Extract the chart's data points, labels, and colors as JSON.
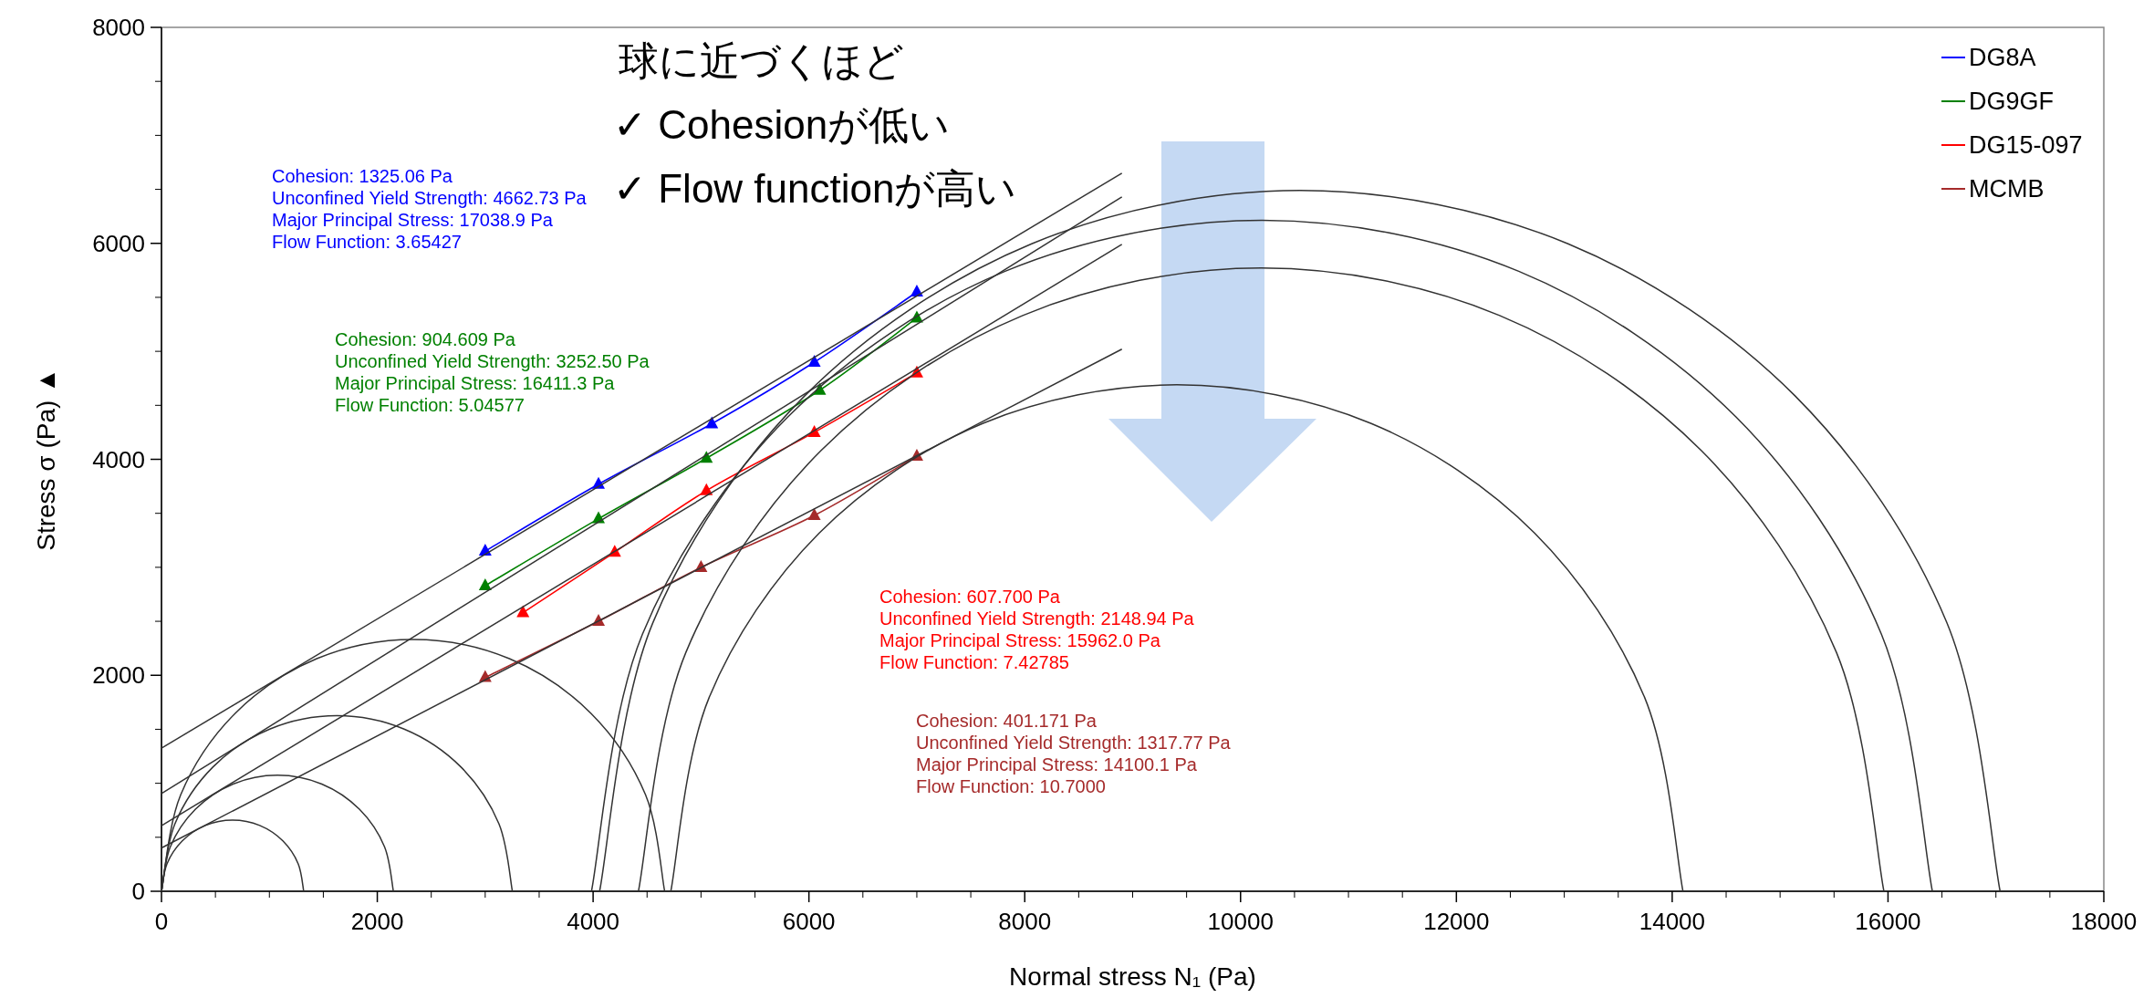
{
  "chart_data": {
    "type": "line",
    "xlabel": "Normal stress N₁ (Pa)",
    "ylabel": "Stress σ (Pa) ▲",
    "xlim": [
      0,
      18000
    ],
    "xticks": [
      0,
      2000,
      4000,
      6000,
      8000,
      10000,
      12000,
      14000,
      16000,
      18000
    ],
    "ylim": [
      0,
      8000
    ],
    "yticks": [
      0,
      2000,
      4000,
      6000,
      8000
    ],
    "grid": false,
    "legend": "top right",
    "series": [
      {
        "name": "DG8A",
        "color": "#0000ff",
        "marker": "triangle",
        "x": [
          3000,
          4050,
          5100,
          6050,
          7000
        ],
        "values": [
          3150,
          3770,
          4330,
          4900,
          5550
        ]
      },
      {
        "name": "DG9GF",
        "color": "#008000",
        "marker": "triangle",
        "x": [
          3000,
          4050,
          5050,
          6100,
          7000
        ],
        "values": [
          2830,
          3450,
          4010,
          4640,
          5310
        ]
      },
      {
        "name": "DG15-097",
        "color": "#ff0000",
        "marker": "triangle",
        "x": [
          3350,
          4200,
          5050,
          6050,
          7000
        ],
        "values": [
          2580,
          3140,
          3710,
          4250,
          4800
        ]
      },
      {
        "name": "MCMB",
        "color": "#a52a2a",
        "marker": "triangle",
        "x": [
          3000,
          4050,
          5000,
          6050,
          7000
        ],
        "values": [
          1980,
          2500,
          3000,
          3480,
          4030
        ]
      },
      {
        "color": "#333333",
        "marker": "none",
        "x": [
          0,
          8900
        ],
        "values": [
          1325,
          6650
        ]
      },
      {
        "color": "#333333",
        "marker": "none",
        "x": [
          0,
          8900
        ],
        "values": [
          905,
          6430
        ]
      },
      {
        "color": "#333333",
        "marker": "none",
        "x": [
          0,
          8900
        ],
        "values": [
          608,
          5990
        ]
      },
      {
        "color": "#333333",
        "marker": "none",
        "x": [
          0,
          8900
        ],
        "values": [
          401,
          5020
        ]
      },
      {
        "color": "#333333",
        "marker": "none",
        "x": [
          1318,
          1268,
          1125,
          911,
          659,
          407,
          193,
          50,
          0
        ],
        "values": [
          0,
          252,
          466,
          609,
          659,
          609,
          466,
          252,
          0
        ]
      },
      {
        "color": "#333333",
        "marker": "none",
        "x": [
          2149,
          2067,
          1834,
          1486,
          1075,
          663,
          315,
          82,
          0
        ],
        "values": [
          0,
          412,
          760,
          993,
          1075,
          993,
          760,
          412,
          0
        ]
      },
      {
        "color": "#333333",
        "marker": "none",
        "x": [
          3252,
          3128,
          2776,
          2249,
          1626,
          1003,
          476,
          124,
          0
        ],
        "values": [
          0,
          623,
          1150,
          1502,
          1626,
          1502,
          1150,
          623,
          0
        ]
      },
      {
        "color": "#333333",
        "marker": "none",
        "x": [
          4663,
          4486,
          3980,
          3224,
          2332,
          1439,
          683,
          178,
          0
        ],
        "values": [
          0,
          893,
          1648,
          2154,
          2332,
          2154,
          1648,
          893,
          0
        ]
      },
      {
        "color": "#333333",
        "marker": "none",
        "x": [
          17039,
          16546,
          15138,
          13035,
          10550,
          8064,
          5961,
          4553,
          4060
        ],
        "values": [
          0,
          2485,
          4588,
          5996,
          6490,
          5996,
          4588,
          2485,
          0
        ]
      },
      {
        "color": "#333333",
        "marker": "none",
        "x": [
          16411,
          15939,
          14591,
          12578,
          10198,
          7818,
          5805,
          4457,
          3985
        ],
        "values": [
          0,
          2380,
          4393,
          5741,
          6213,
          5741,
          4393,
          2380,
          0
        ]
      },
      {
        "color": "#333333",
        "marker": "none",
        "x": [
          15962,
          15523,
          14271,
          12401,
          10191,
          7981,
          6111,
          4859,
          4420
        ],
        "values": [
          0,
          2210,
          4080,
          5332,
          5771,
          5332,
          4080,
          2210,
          0
        ]
      },
      {
        "color": "#333333",
        "marker": "none",
        "x": [
          14100,
          13744,
          12726,
          11206,
          9410,
          7614,
          6094,
          5076,
          4720
        ],
        "values": [
          0,
          1796,
          3316,
          4334,
          4690,
          4334,
          3316,
          1796,
          0
        ]
      }
    ],
    "annotations": [
      "Cohesion: 1325.06 Pa\nUnconfined Yield Strength: 4662.73 Pa\nMajor Principal Stress: 17038.9 Pa\nFlow Function: 3.65427",
      "Cohesion: 904.609 Pa\nUnconfined Yield Strength: 3252.50 Pa\nMajor Principal Stress: 16411.3 Pa\nFlow Function: 5.04577",
      "Cohesion: 607.700 Pa\nUnconfined Yield Strength: 2148.94 Pa\nMajor Principal Stress: 15962.0 Pa\nFlow Function: 7.42785",
      "Cohesion: 401.171 Pa\nUnconfined Yield Strength: 1317.77 Pa\nMajor Principal Stress: 14100.1 Pa\nFlow Function: 10.7000",
      "球に近づくほど",
      "✓ Cohesionが低い",
      "✓ Flow functionが高い"
    ]
  }
}
